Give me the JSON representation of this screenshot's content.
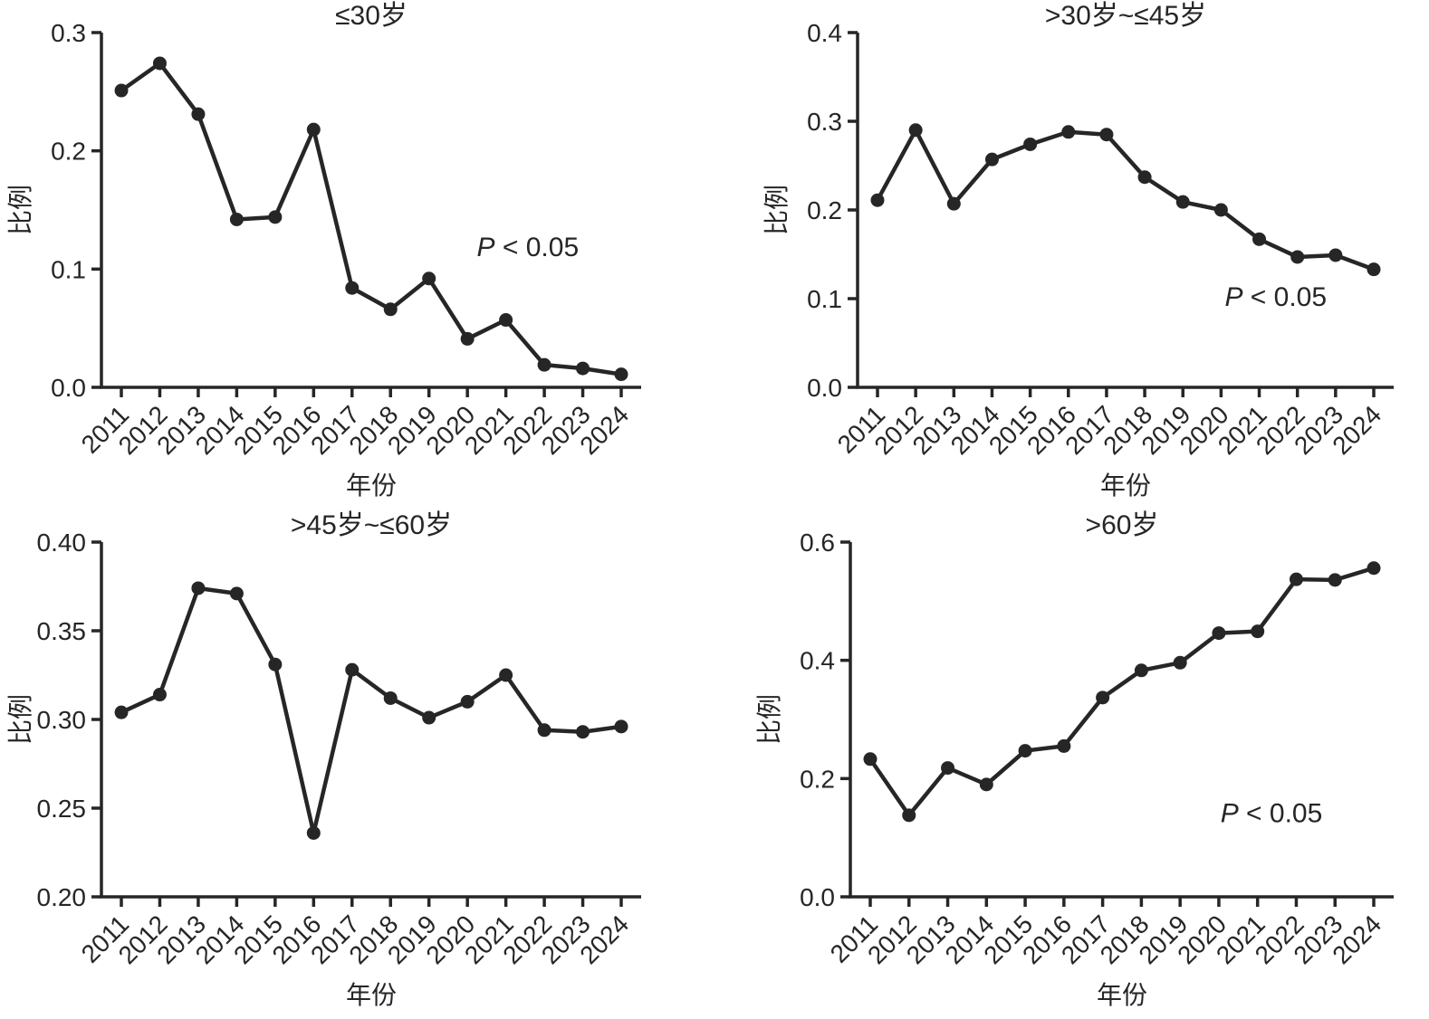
{
  "page": {
    "background": "#ffffff",
    "ink_color": "#262626",
    "figure_type": "2x2 panel of line charts"
  },
  "chart_data": [
    {
      "type": "line",
      "title": "≤30岁",
      "xlabel": "年份",
      "ylabel": "比例",
      "categories": [
        "2011",
        "2012",
        "2013",
        "2014",
        "2015",
        "2016",
        "2017",
        "2018",
        "2019",
        "2020",
        "2021",
        "2022",
        "2023",
        "2024"
      ],
      "values": [
        0.251,
        0.274,
        0.231,
        0.142,
        0.144,
        0.218,
        0.084,
        0.066,
        0.092,
        0.041,
        0.057,
        0.019,
        0.016,
        0.011
      ],
      "ylim": [
        0.0,
        0.3
      ],
      "yticks": [
        0.0,
        0.1,
        0.2,
        0.3
      ],
      "ytick_labels": [
        "0.0",
        "0.1",
        "0.2",
        "0.3"
      ],
      "grid": false,
      "legend": null,
      "marker": "circle",
      "line_color": "#262626",
      "annotation": {
        "label": "P < 0.05",
        "italic": "P",
        "rest": " < 0.05",
        "fx": 0.79,
        "fy": 0.63
      }
    },
    {
      "type": "line",
      "title": ">30岁~≤45岁",
      "xlabel": "年份",
      "ylabel": "比例",
      "categories": [
        "2011",
        "2012",
        "2013",
        "2014",
        "2015",
        "2016",
        "2017",
        "2018",
        "2019",
        "2020",
        "2021",
        "2022",
        "2023",
        "2024"
      ],
      "values": [
        0.211,
        0.29,
        0.207,
        0.257,
        0.274,
        0.288,
        0.285,
        0.237,
        0.209,
        0.2,
        0.167,
        0.147,
        0.149,
        0.133
      ],
      "ylim": [
        0.0,
        0.4
      ],
      "yticks": [
        0.0,
        0.1,
        0.2,
        0.3,
        0.4
      ],
      "ytick_labels": [
        "0.0",
        "0.1",
        "0.2",
        "0.3",
        "0.4"
      ],
      "grid": false,
      "legend": null,
      "marker": "circle",
      "line_color": "#262626",
      "annotation": {
        "label": "P < 0.05",
        "italic": "P",
        "rest": " < 0.05",
        "fx": 0.78,
        "fy": 0.77
      }
    },
    {
      "type": "line",
      "title": ">45岁~≤60岁",
      "xlabel": "年份",
      "ylabel": "比例",
      "categories": [
        "2011",
        "2012",
        "2013",
        "2014",
        "2015",
        "2016",
        "2017",
        "2018",
        "2019",
        "2020",
        "2021",
        "2022",
        "2023",
        "2024"
      ],
      "values": [
        0.304,
        0.314,
        0.374,
        0.371,
        0.331,
        0.236,
        0.328,
        0.312,
        0.301,
        0.31,
        0.325,
        0.294,
        0.293,
        0.296
      ],
      "ylim": [
        0.2,
        0.4
      ],
      "yticks": [
        0.2,
        0.25,
        0.3,
        0.35,
        0.4
      ],
      "ytick_labels": [
        "0.20",
        "0.25",
        "0.30",
        "0.35",
        "0.40"
      ],
      "grid": false,
      "legend": null,
      "marker": "circle",
      "line_color": "#262626",
      "annotation": null
    },
    {
      "type": "line",
      "title": ">60岁",
      "xlabel": "年份",
      "ylabel": "比例",
      "categories": [
        "2011",
        "2012",
        "2013",
        "2014",
        "2015",
        "2016",
        "2017",
        "2018",
        "2019",
        "2020",
        "2021",
        "2022",
        "2023",
        "2024"
      ],
      "values": [
        0.233,
        0.138,
        0.218,
        0.19,
        0.247,
        0.255,
        0.337,
        0.383,
        0.396,
        0.446,
        0.449,
        0.537,
        0.536,
        0.556
      ],
      "ylim": [
        0.0,
        0.6
      ],
      "yticks": [
        0.0,
        0.2,
        0.4,
        0.6
      ],
      "ytick_labels": [
        "0.0",
        "0.2",
        "0.4",
        "0.6"
      ],
      "grid": false,
      "legend": null,
      "marker": "circle",
      "line_color": "#262626",
      "annotation": {
        "label": "P < 0.05",
        "italic": "P",
        "rest": " < 0.05",
        "fx": 0.775,
        "fy": 0.79
      }
    }
  ]
}
